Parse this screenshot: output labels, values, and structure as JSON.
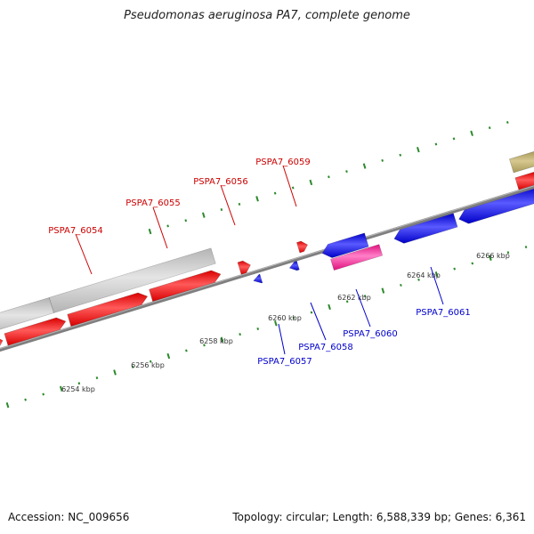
{
  "title": "Pseudomonas aeruginosa PA7, complete genome",
  "footer": {
    "accession": "Accession: NC_009656",
    "stats": "Topology: circular; Length: 6,588,339 bp; Genes: 6,361"
  },
  "colors": {
    "forward_gene": "#ff0000",
    "reverse_gene": "#0000ff",
    "pseudo_gene": "#c8c8c8",
    "pink_gene": "#ff2fa8",
    "tan_gene": "#b8a868",
    "backbone": "#7f7f7f",
    "tick_dot": "#2c8a2c",
    "forward_label": "#cc0000",
    "reverse_label": "#0000cc"
  },
  "tick_labels": [
    "6254 kbp",
    "6256 kbp",
    "6258 kbp",
    "6260 kbp",
    "6262 kbp",
    "6264 kbp",
    "6266 kbp"
  ],
  "gene_labels": {
    "forward": [
      "PSPA7_6054",
      "PSPA7_6055",
      "PSPA7_6056",
      "PSPA7_6059"
    ],
    "reverse": [
      "PSPA7_6057",
      "PSPA7_6058",
      "PSPA7_6060",
      "PSPA7_6061"
    ]
  }
}
